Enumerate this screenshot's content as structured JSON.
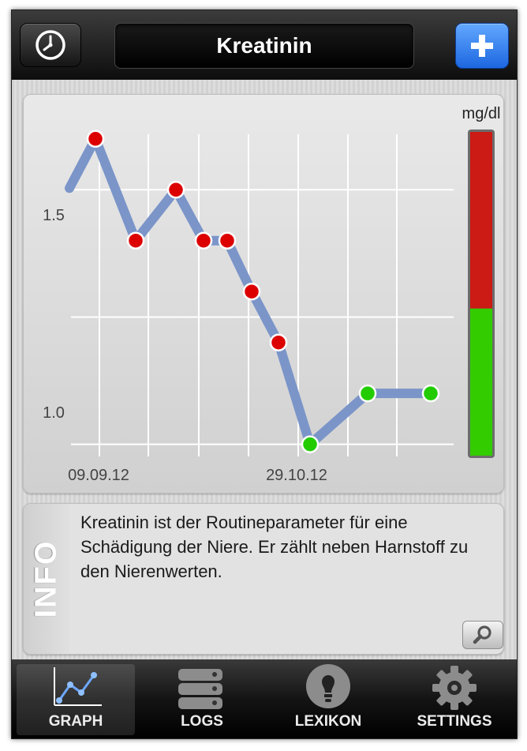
{
  "navbar": {
    "title": "Kreatinin"
  },
  "graph": {
    "unit": "mg/dl",
    "ytick_labels": [
      "1.5",
      "1.0"
    ],
    "xtick_labels": [
      "09.09.12",
      "29.10.12"
    ],
    "colors": {
      "line": "#7b95c9",
      "point_high": "#dd0000",
      "point_normal": "#22cc00",
      "scale_high": "#cc1a14",
      "scale_normal": "#33cc00"
    }
  },
  "chart_data": {
    "type": "line",
    "ylabel": "mg/dl",
    "ylim": [
      0.97,
      1.64
    ],
    "yticks": [
      1.0,
      1.5
    ],
    "xticks": [
      "09.09.12",
      "29.10.12"
    ],
    "grid": true,
    "legend": "none",
    "series": [
      {
        "values": [
          1.6,
          1.4,
          1.5,
          1.4,
          1.4,
          1.3,
          1.2,
          1.0,
          1.1,
          1.1
        ],
        "status": [
          "high",
          "high",
          "high",
          "high",
          "high",
          "high",
          "high",
          "normal",
          "normal",
          "normal"
        ]
      }
    ],
    "reference_scale": {
      "high_above": 1.2
    }
  },
  "info": {
    "label": "INFO",
    "text": "Kreatinin ist der Routineparameter für eine Schädigung der Niere. Er zählt neben Harnstoff zu den Nierenwerten."
  },
  "tabs": [
    {
      "label": "GRAPH",
      "icon": "graph-icon",
      "active": true
    },
    {
      "label": "LOGS",
      "icon": "logs-icon",
      "active": false
    },
    {
      "label": "LEXIKON",
      "icon": "lightbulb-icon",
      "active": false
    },
    {
      "label": "SETTINGS",
      "icon": "gear-icon",
      "active": false
    }
  ]
}
